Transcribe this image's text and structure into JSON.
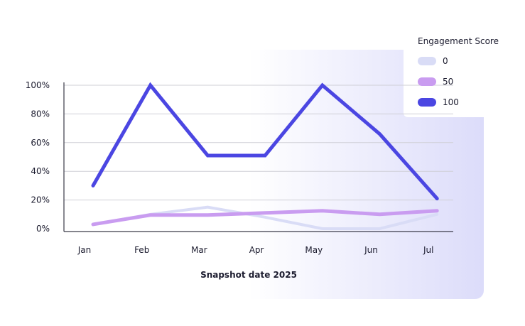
{
  "chart_data": {
    "type": "line",
    "title": "",
    "xlabel": "Snapshot date 2025",
    "ylabel": "",
    "categories": [
      "Jan",
      "Feb",
      "Mar",
      "Apr",
      "May",
      "Jun",
      "Jul"
    ],
    "ylim": [
      0,
      100
    ],
    "yticks": [
      "0%",
      "20%",
      "40%",
      "60%",
      "80%",
      "100%"
    ],
    "grid": true,
    "legend": {
      "title": "Engagement Score",
      "position": "top-right"
    },
    "series": [
      {
        "name": "0",
        "color": "#d9dcf6",
        "values": [
          3,
          10,
          15,
          8,
          0,
          0,
          10
        ]
      },
      {
        "name": "50",
        "color": "#c99cf0",
        "values": [
          3,
          9.5,
          9.5,
          11,
          12.5,
          10,
          12.5
        ]
      },
      {
        "name": "100",
        "color": "#4b46e2",
        "values": [
          30,
          100,
          51,
          51,
          100,
          66,
          21
        ]
      }
    ]
  }
}
